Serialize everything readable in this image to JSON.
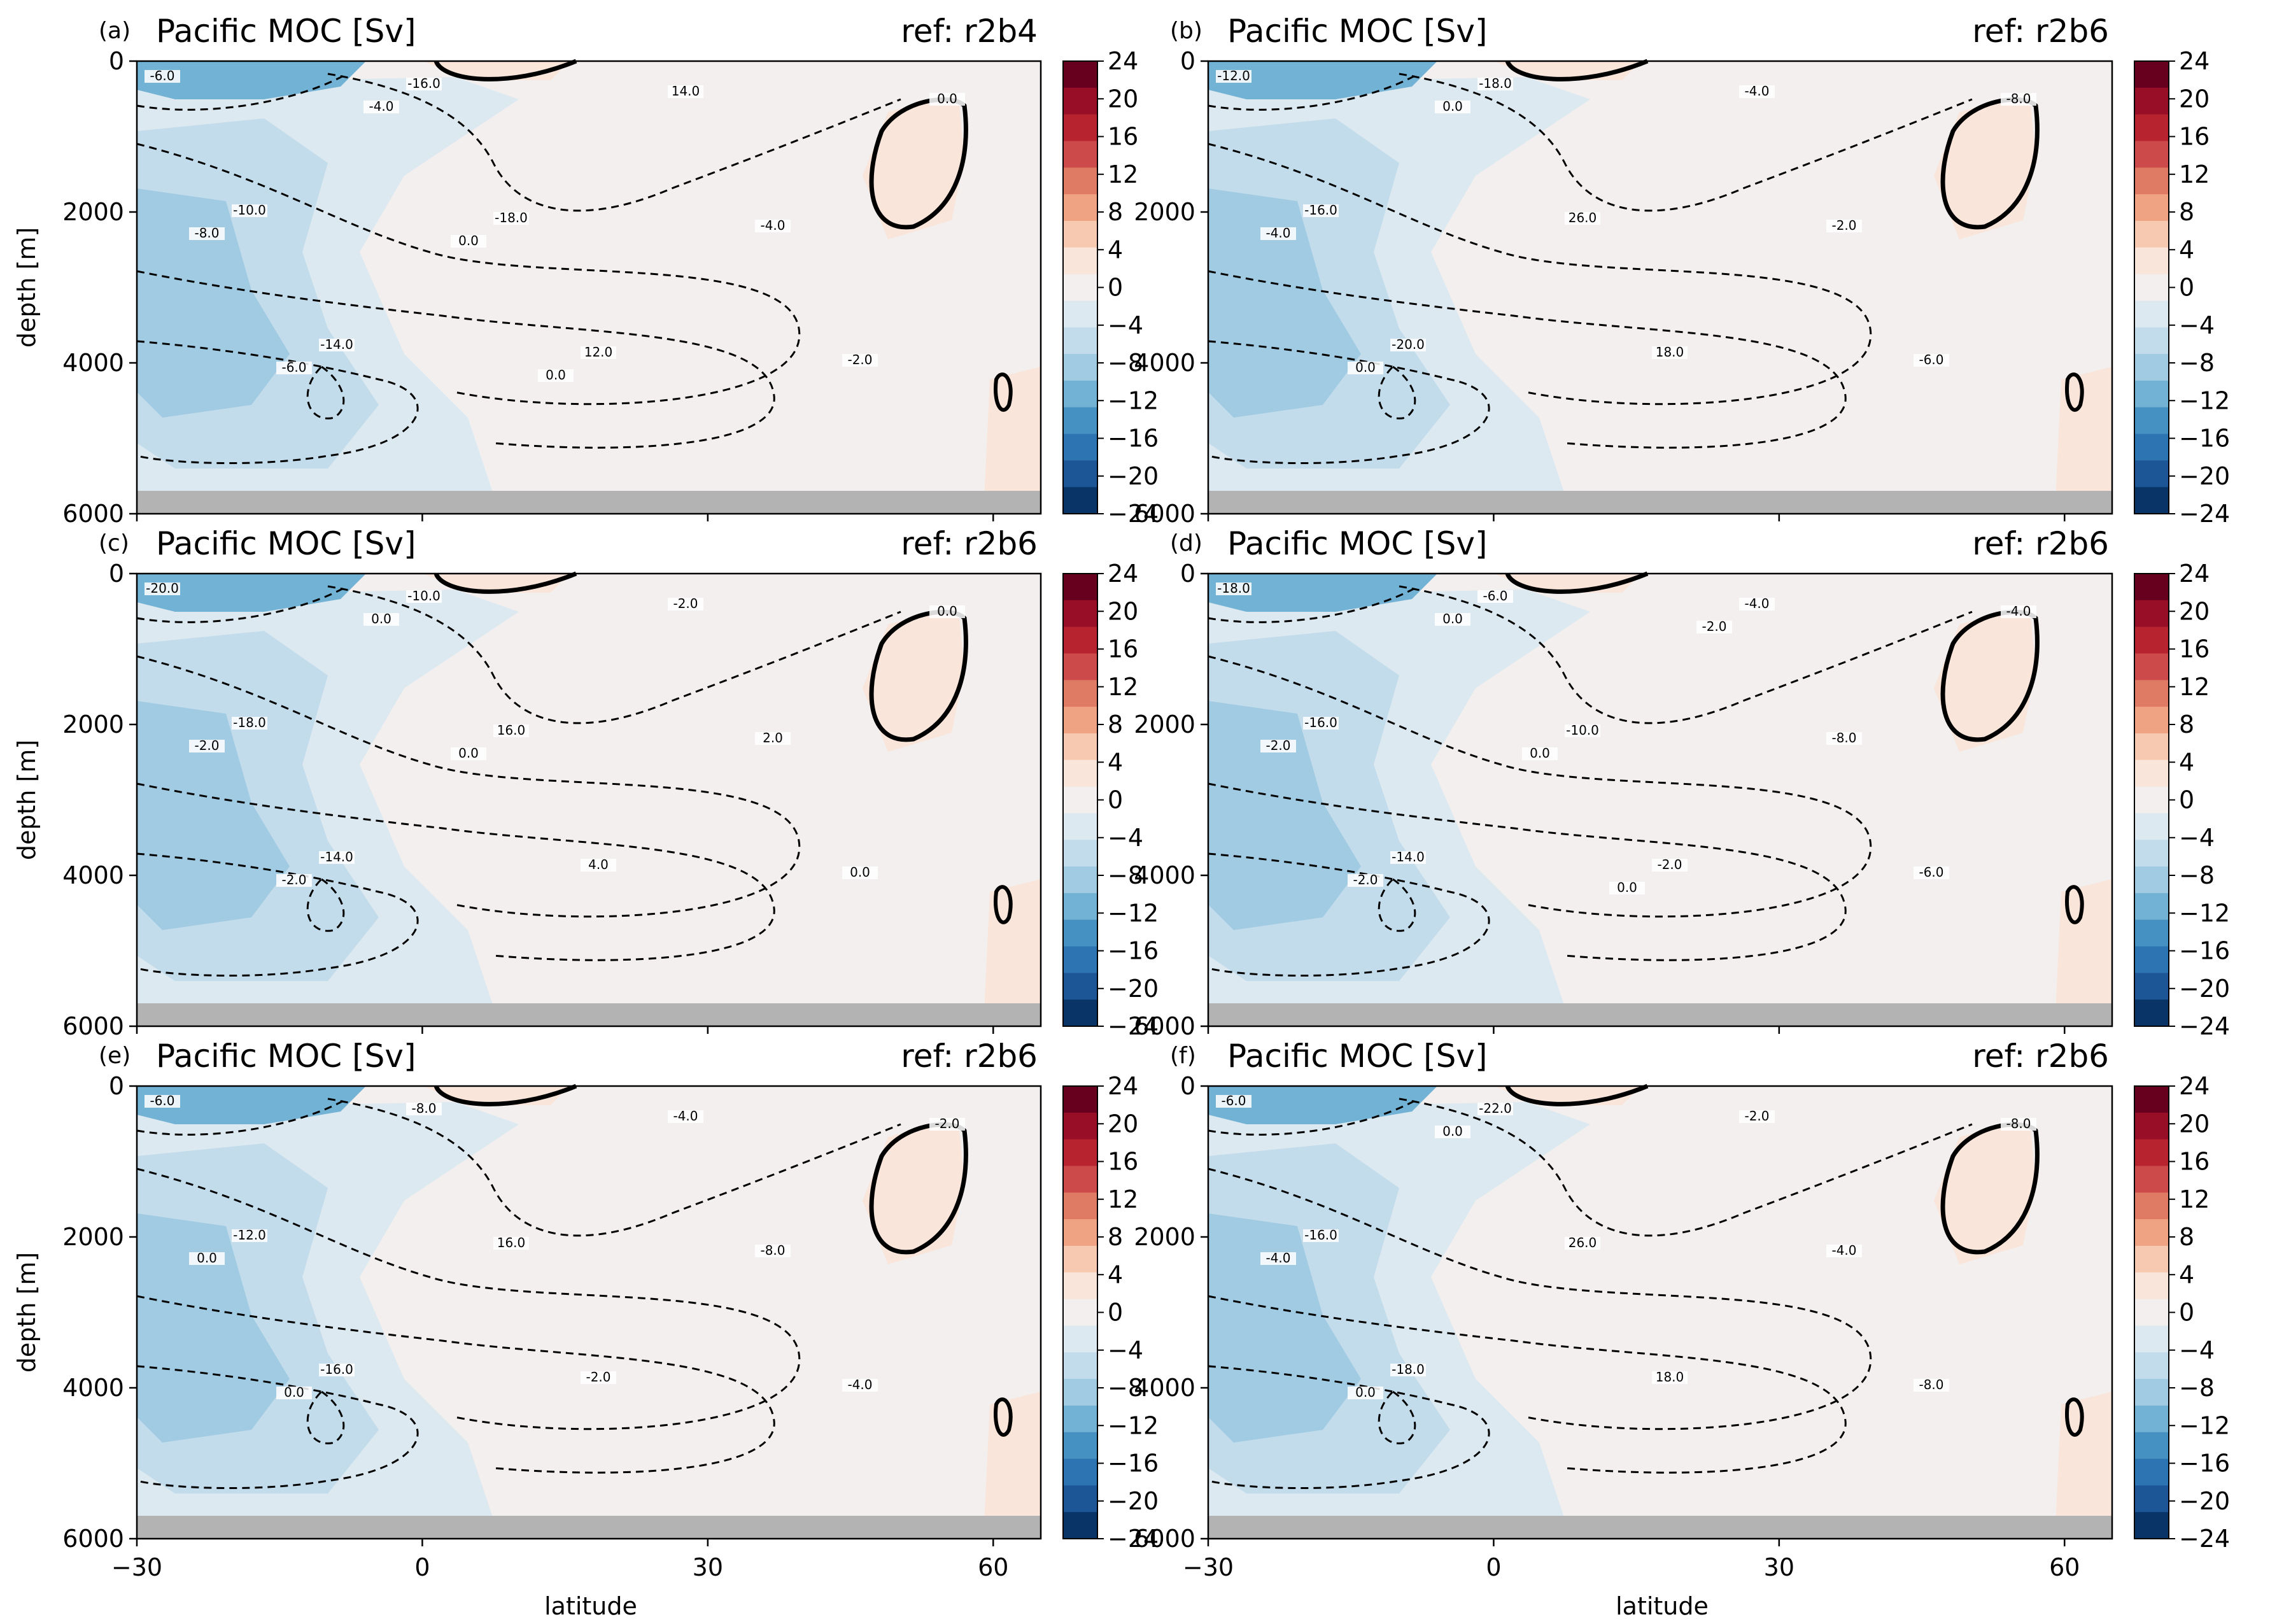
{
  "figure": {
    "xlabel": "latitude",
    "ylabel": "depth [m]"
  },
  "colorbar": {
    "ticks": [
      "24",
      "20",
      "16",
      "12",
      "8",
      "4",
      "0",
      "−4",
      "−8",
      "−12",
      "−16",
      "−20",
      "−24"
    ],
    "colors": [
      "#67001f",
      "#980e27",
      "#b7242f",
      "#cc4b4a",
      "#df7a64",
      "#f0a383",
      "#f8c9b1",
      "#f9e5da",
      "#f2efee",
      "#dde9f0",
      "#c3dceb",
      "#a1cbe2",
      "#72b2d5",
      "#4592c2",
      "#2c74b2",
      "#1d5696",
      "#083467"
    ]
  },
  "chart_data": [
    {
      "type": "heatmap",
      "panel": "(a)",
      "title": "Pacific MOC [Sv]",
      "reference": "ref: r2b4",
      "xticks": [
        "−30",
        "0",
        "30",
        "60"
      ],
      "yticks": [
        "0",
        "2000",
        "4000",
        "6000"
      ],
      "xlim": [
        -30,
        65
      ],
      "ylim": [
        6000,
        0
      ],
      "clim": [
        -24,
        24
      ],
      "contour_labels": [
        "-6.0",
        "-10.0",
        "-14.0",
        "-16.0",
        "-18.0",
        "12.0",
        "14.0",
        "-4.0",
        "-2.0",
        "0.0",
        "-8.0",
        "-6.0",
        "-4.0",
        "0.0",
        "0.0"
      ]
    },
    {
      "type": "heatmap",
      "panel": "(b)",
      "title": "Pacific MOC [Sv]",
      "reference": "ref: r2b6",
      "xticks": [
        "−30",
        "0",
        "30",
        "60"
      ],
      "yticks": [
        "0",
        "2000",
        "4000",
        "6000"
      ],
      "xlim": [
        -30,
        65
      ],
      "ylim": [
        6000,
        0
      ],
      "clim": [
        -24,
        24
      ],
      "contour_labels": [
        "-12.0",
        "-16.0",
        "-20.0",
        "-18.0",
        "26.0",
        "18.0",
        "-4.0",
        "-2.0",
        "-6.0",
        "-8.0",
        "-4.0",
        "0.0",
        "0.0"
      ]
    },
    {
      "type": "heatmap",
      "panel": "(c)",
      "title": "Pacific MOC [Sv]",
      "reference": "ref: r2b6",
      "xticks": [
        "−30",
        "0",
        "30",
        "60"
      ],
      "yticks": [
        "0",
        "2000",
        "4000",
        "6000"
      ],
      "xlim": [
        -30,
        65
      ],
      "ylim": [
        6000,
        0
      ],
      "clim": [
        -24,
        24
      ],
      "contour_labels": [
        "-20.0",
        "-18.0",
        "-14.0",
        "-10.0",
        "16.0",
        "4.0",
        "-2.0",
        "2.0",
        "0.0",
        "0.0",
        "-2.0",
        "-2.0",
        "0.0",
        "0.0"
      ]
    },
    {
      "type": "heatmap",
      "panel": "(d)",
      "title": "Pacific MOC [Sv]",
      "reference": "ref: r2b6",
      "xticks": [
        "−30",
        "0",
        "30",
        "60"
      ],
      "yticks": [
        "0",
        "2000",
        "4000",
        "6000"
      ],
      "xlim": [
        -30,
        65
      ],
      "ylim": [
        6000,
        0
      ],
      "clim": [
        -24,
        24
      ],
      "contour_labels": [
        "-18.0",
        "-16.0",
        "-14.0",
        "-6.0",
        "-10.0",
        "-2.0",
        "-4.0",
        "-8.0",
        "-6.0",
        "-4.0",
        "-2.0",
        "-2.0",
        "0.0",
        "0.0",
        "0.0",
        "-2.0"
      ]
    },
    {
      "type": "heatmap",
      "panel": "(e)",
      "title": "Pacific MOC [Sv]",
      "reference": "ref: r2b6",
      "xticks": [
        "−30",
        "0",
        "30",
        "60"
      ],
      "yticks": [
        "0",
        "2000",
        "4000",
        "6000"
      ],
      "xlim": [
        -30,
        65
      ],
      "ylim": [
        6000,
        0
      ],
      "clim": [
        -24,
        24
      ],
      "contour_labels": [
        "-6.0",
        "-12.0",
        "-16.0",
        "-8.0",
        "16.0",
        "-2.0",
        "-4.0",
        "-8.0",
        "-4.0",
        "-2.0",
        "0.0",
        "0.0"
      ]
    },
    {
      "type": "heatmap",
      "panel": "(f)",
      "title": "Pacific MOC [Sv]",
      "reference": "ref: r2b6",
      "xticks": [
        "−30",
        "0",
        "30",
        "60"
      ],
      "yticks": [
        "0",
        "2000",
        "4000",
        "6000"
      ],
      "xlim": [
        -30,
        65
      ],
      "ylim": [
        6000,
        0
      ],
      "clim": [
        -24,
        24
      ],
      "contour_labels": [
        "-6.0",
        "-16.0",
        "-18.0",
        "-22.0",
        "26.0",
        "18.0",
        "-2.0",
        "-4.0",
        "-8.0",
        "-8.0",
        "-4.0",
        "0.0",
        "0.0"
      ]
    }
  ]
}
